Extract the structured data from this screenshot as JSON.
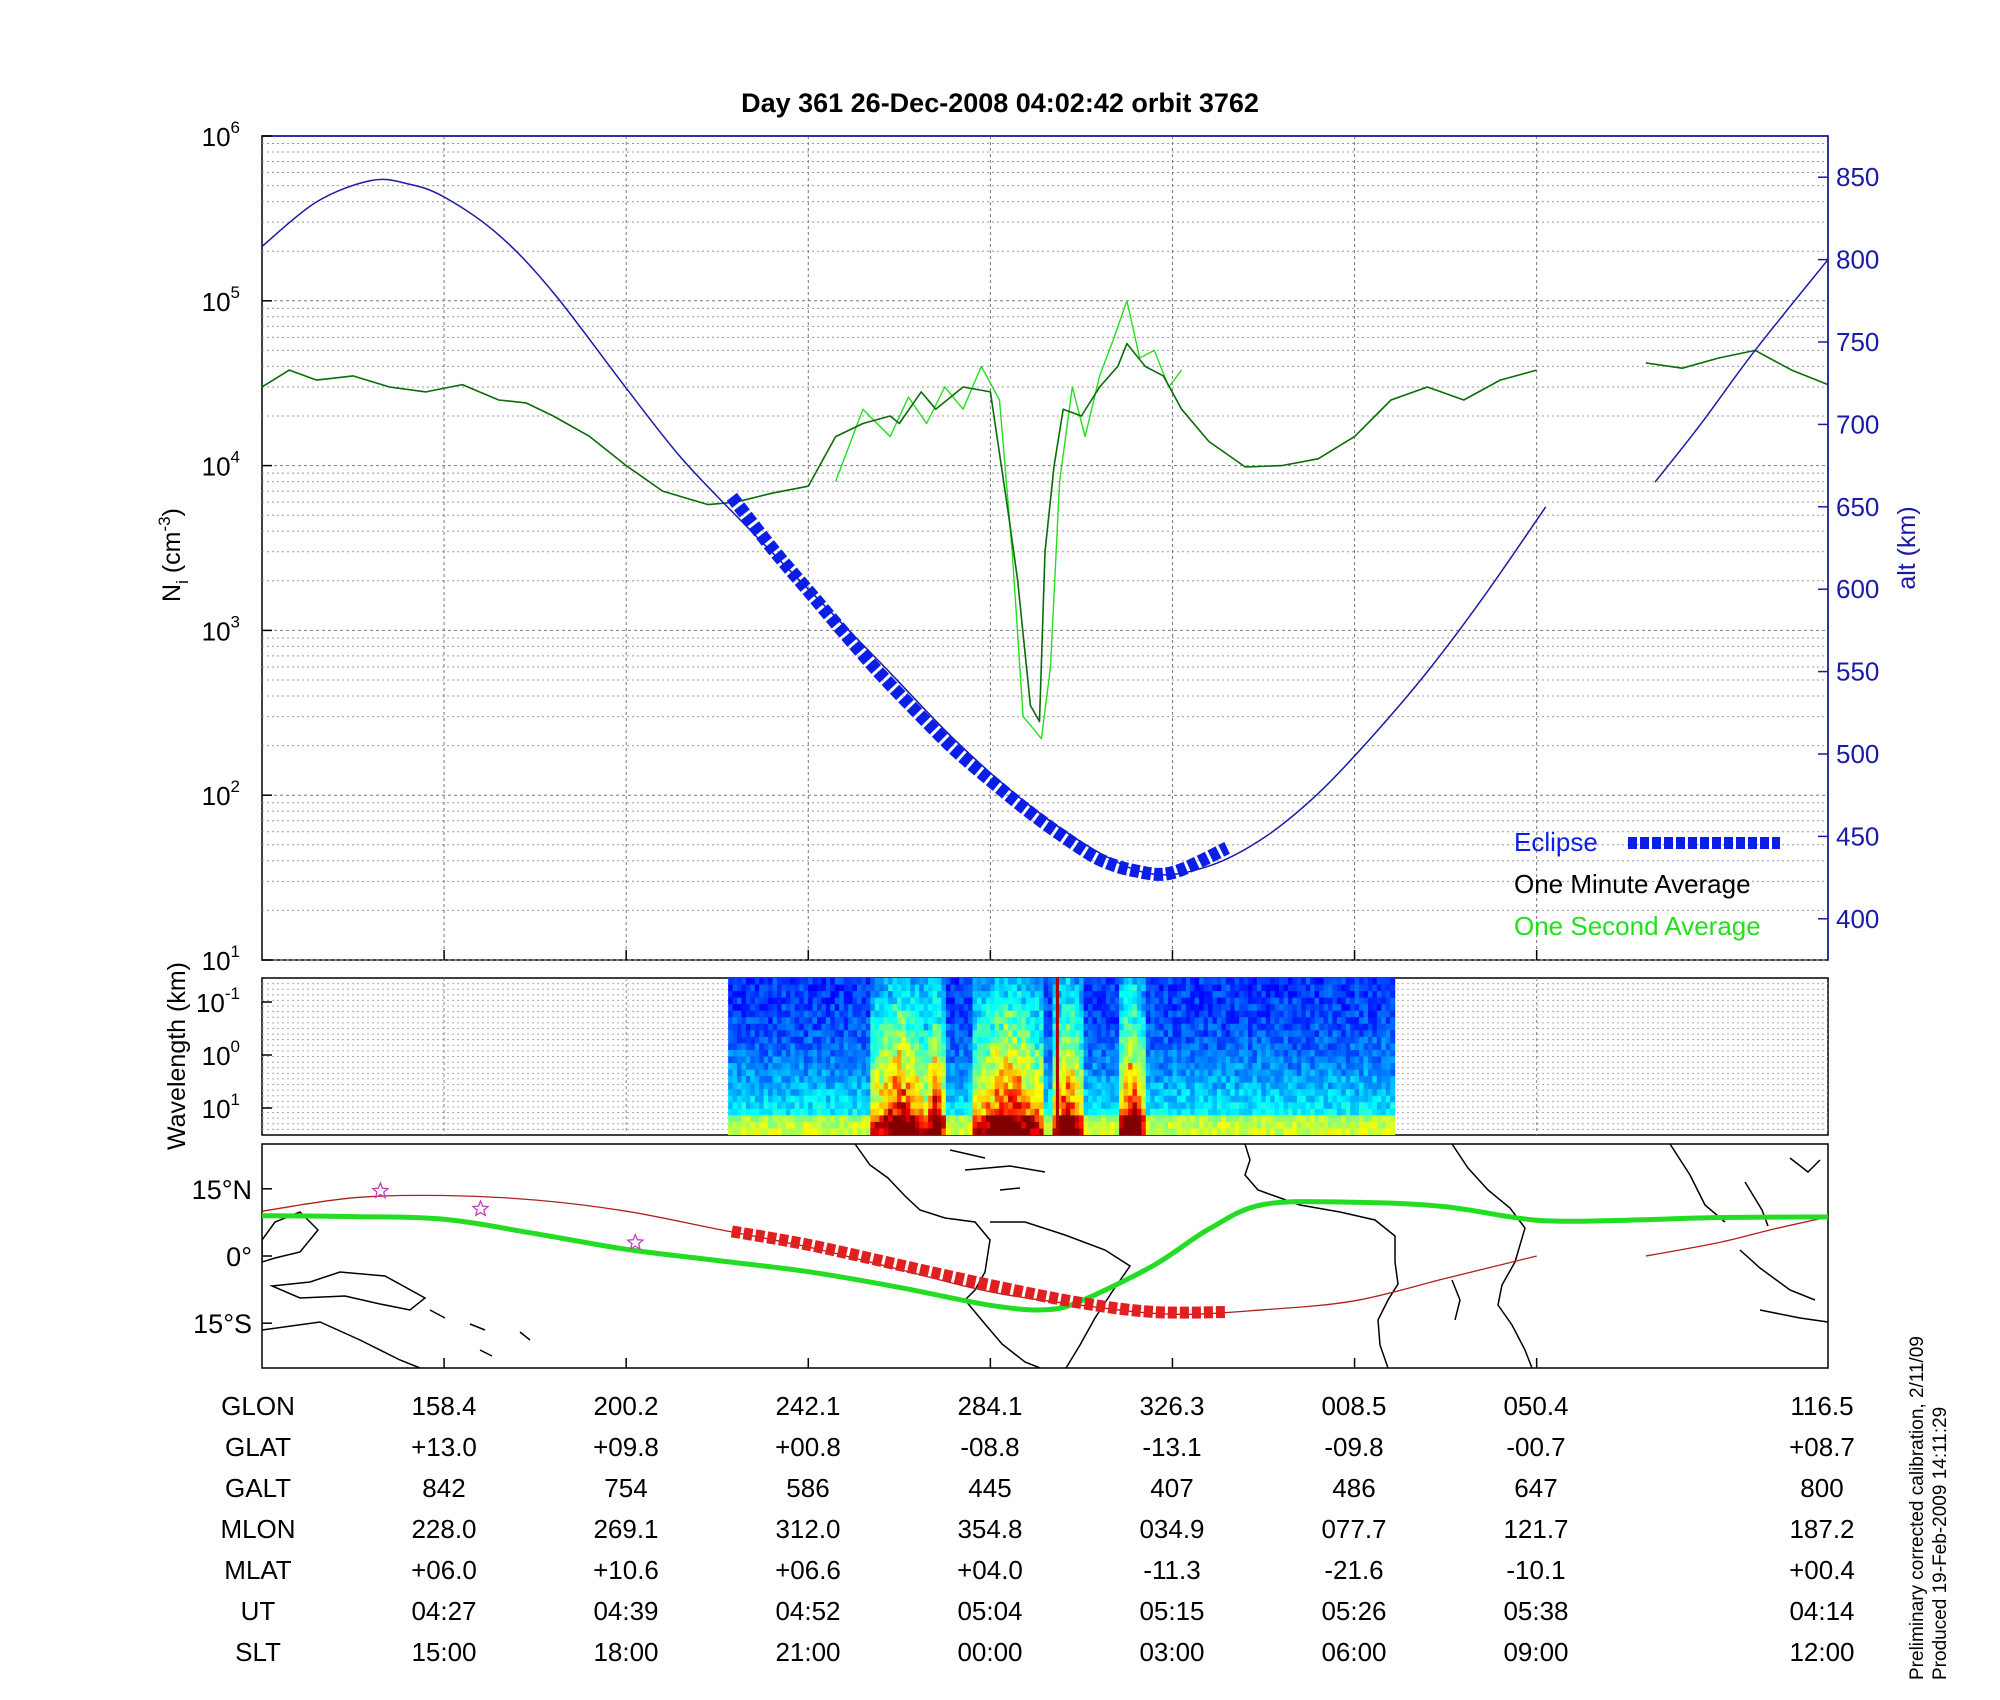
{
  "header": {
    "title": "Day 361  26-Dec-2008 04:02:42   orbit 3762"
  },
  "notes": {
    "calibration": "Preliminary corrected calibration, 2/11/09",
    "produced": "Produced 19-Feb-2009 14:11:29"
  },
  "colors": {
    "eclipse": "#0b1ee8",
    "one_minute": "#0b6b0b",
    "one_second": "#22e01c",
    "altitude": "#1a1aa8",
    "ground_track": "#22dd22",
    "eclipse_track": "#e02020",
    "orbit_track": "#b02020",
    "coast": "#000000",
    "star": "#c040c0"
  },
  "chart_data": [
    {
      "type": "line",
      "title": "Day 361  26-Dec-2008 04:02:42   orbit 3762",
      "ylabel": "N_i (cm^-3)",
      "ylabel_text": "N",
      "ylabel_sub": "i",
      "ylabel_par": "(cm",
      "ylabel_sup": "-3",
      "ylabel_close": ")",
      "y2label": "alt (km)",
      "yscale": "log",
      "ylim": [
        10,
        1000000
      ],
      "y_ticks": [
        {
          "base": "10",
          "exp": "1",
          "value": 10
        },
        {
          "base": "10",
          "exp": "2",
          "value": 100
        },
        {
          "base": "10",
          "exp": "3",
          "value": 1000
        },
        {
          "base": "10",
          "exp": "4",
          "value": 10000
        },
        {
          "base": "10",
          "exp": "5",
          "value": 100000
        },
        {
          "base": "10",
          "exp": "6",
          "value": 1000000
        }
      ],
      "y2lim": [
        375,
        875
      ],
      "y2_ticks": [
        "400",
        "450",
        "500",
        "550",
        "600",
        "650",
        "700",
        "750",
        "800",
        "850"
      ],
      "x_range": [
        0,
        8.6
      ],
      "grid": true,
      "legend_position": "bottom-right",
      "legend": [
        {
          "label": "Eclipse",
          "series": "eclipse"
        },
        {
          "label": "One Minute Average",
          "series": "one_minute"
        },
        {
          "label": "One Second Average",
          "series": "one_second"
        }
      ],
      "series": [
        {
          "key": "altitude",
          "name": "alt (km)",
          "axis": "right",
          "x": [
            0,
            0.3,
            0.6,
            0.8,
            1.0,
            1.3,
            1.6,
            2.0,
            2.3,
            2.6,
            3.0,
            3.4,
            3.8,
            4.2,
            4.6,
            4.9,
            5.2,
            5.5,
            5.8,
            6.1,
            6.4,
            6.7,
            7.05
          ],
          "values": [
            808,
            835,
            848,
            846,
            838,
            815,
            780,
            722,
            680,
            645,
            600,
            555,
            509,
            470,
            440,
            427,
            432,
            449,
            476,
            511,
            550,
            594,
            650
          ]
        },
        {
          "key": "altitude_tail",
          "name": "alt (km)",
          "axis": "right",
          "x": [
            7.65,
            7.9,
            8.2,
            8.6
          ],
          "values": [
            665,
            700,
            745,
            800
          ]
        },
        {
          "key": "eclipse",
          "name": "Eclipse",
          "axis": "right",
          "x": [
            2.58,
            2.8,
            3.0,
            3.2,
            3.4,
            3.6,
            3.8,
            4.0,
            4.2,
            4.4,
            4.6,
            4.8,
            5.0,
            5.3
          ],
          "values": [
            656,
            625,
            599,
            573,
            548,
            525,
            503,
            484,
            466,
            450,
            436,
            429,
            428,
            443
          ]
        },
        {
          "key": "one_minute",
          "name": "One Minute Average",
          "axis": "left",
          "x": [
            0,
            0.15,
            0.3,
            0.5,
            0.7,
            0.9,
            1.1,
            1.3,
            1.45,
            1.6,
            1.8,
            2.0,
            2.2,
            2.45,
            2.6,
            2.8,
            3.0,
            3.15,
            3.3,
            3.45,
            3.5,
            3.62,
            3.7,
            3.85,
            4.0,
            4.1,
            4.15,
            4.22,
            4.27,
            4.3,
            4.35,
            4.4,
            4.5,
            4.6,
            4.7,
            4.75,
            4.85,
            4.95,
            5.05,
            5.2,
            5.4,
            5.6,
            5.8,
            6.0,
            6.2,
            6.4,
            6.6,
            6.8,
            7.0
          ],
          "values": [
            30000,
            38000,
            33000,
            35000,
            30000,
            28000,
            31000,
            25000,
            24000,
            20000,
            15000,
            10000,
            7000,
            5800,
            6000,
            6800,
            7500,
            15000,
            18000,
            20000,
            18000,
            28000,
            22000,
            30000,
            28000,
            5000,
            2000,
            350,
            280,
            3000,
            10000,
            22000,
            20000,
            30000,
            40000,
            55000,
            40000,
            35000,
            22000,
            14000,
            9800,
            10000,
            11000,
            15000,
            25000,
            30000,
            25000,
            33000,
            38000
          ]
        },
        {
          "key": "one_minute_tail",
          "name": "One Minute Average",
          "axis": "left",
          "x": [
            7.6,
            7.8,
            8.0,
            8.2,
            8.4,
            8.6
          ],
          "values": [
            42000,
            39000,
            45000,
            50000,
            38000,
            31000
          ]
        },
        {
          "key": "one_second",
          "name": "One Second Average",
          "axis": "left",
          "x": [
            3.15,
            3.3,
            3.45,
            3.55,
            3.65,
            3.75,
            3.85,
            3.95,
            4.05,
            4.12,
            4.18,
            4.24,
            4.28,
            4.33,
            4.38,
            4.45,
            4.52,
            4.6,
            4.68,
            4.75,
            4.82,
            4.9,
            4.98,
            5.05
          ],
          "values": [
            8000,
            22000,
            15000,
            26000,
            18000,
            30000,
            22000,
            40000,
            25000,
            3000,
            300,
            250,
            220,
            600,
            8000,
            30000,
            15000,
            35000,
            60000,
            100000,
            45000,
            50000,
            30000,
            38000
          ]
        }
      ]
    },
    {
      "type": "heatmap",
      "ylabel": "Wavelength (km)",
      "ylabel_note": "log scale, inverted",
      "y_ticks": [
        {
          "base": "10",
          "exp": "-1"
        },
        {
          "base": "10",
          "exp": "0"
        },
        {
          "base": "10",
          "exp": "1"
        }
      ],
      "x_range": [
        0,
        8.6
      ],
      "data_extent_x": [
        2.56,
        6.22
      ],
      "colormap": "jet",
      "active_bands_x": [
        [
          3.35,
          3.65
        ],
        [
          3.65,
          3.75
        ],
        [
          3.9,
          4.3
        ],
        [
          4.35,
          4.5
        ],
        [
          4.7,
          4.85
        ]
      ],
      "grid": true
    },
    {
      "type": "line",
      "ylabel": "",
      "description_free": true,
      "y_ticks": [
        "15°N",
        "0°",
        "15°S"
      ],
      "ylim": [
        -25,
        25
      ],
      "x_range": [
        0,
        8.6
      ],
      "series": [
        {
          "key": "ground_track",
          "x": [
            0,
            0.5,
            1.0,
            1.5,
            2.0,
            2.5,
            3.0,
            3.5,
            4.0,
            4.3,
            4.5,
            4.9,
            5.2,
            5.5,
            6.0,
            6.5,
            7.0,
            7.5,
            8.0,
            8.6
          ],
          "values": [
            9,
            8.8,
            8.2,
            5,
            1.5,
            -1,
            -3.5,
            -7,
            -11,
            -12,
            -10,
            -2,
            6,
            11.5,
            12,
            11,
            8,
            8,
            8.6,
            8.7
          ]
        },
        {
          "key": "orbit_track",
          "x": [
            0,
            0.5,
            1.0,
            1.5,
            2.0,
            2.5,
            3.0,
            3.5,
            4.0,
            4.5,
            5.0,
            5.5,
            6.0,
            6.5,
            7.0
          ],
          "values": [
            10,
            13,
            13.5,
            12.5,
            10,
            6,
            2,
            -3,
            -8,
            -11,
            -13,
            -12,
            -10,
            -5,
            0
          ]
        },
        {
          "key": "orbit_track_tail",
          "x": [
            7.6,
            8.0,
            8.3,
            8.6
          ],
          "values": [
            0,
            3,
            6,
            8.7
          ]
        },
        {
          "key": "eclipse_track",
          "x": [
            2.58,
            3.0,
            3.5,
            4.0,
            4.5,
            4.9,
            5.3
          ],
          "values": [
            5.5,
            2.5,
            -2,
            -6.5,
            -10.5,
            -12.5,
            -12.5
          ]
        }
      ],
      "stars_x": [
        0.65,
        1.2,
        2.05
      ],
      "stars_y": [
        14.5,
        10.5,
        3.0
      ]
    }
  ],
  "table": {
    "row_labels": [
      "GLON",
      "GLAT",
      "GALT",
      "MLON",
      "MLAT",
      "UT",
      "SLT"
    ],
    "columns": [
      [
        "158.4",
        "+13.0",
        "842",
        "228.0",
        "+06.0",
        "04:27",
        "15:00"
      ],
      [
        "200.2",
        "+09.8",
        "754",
        "269.1",
        "+10.6",
        "04:39",
        "18:00"
      ],
      [
        "242.1",
        "+00.8",
        "586",
        "312.0",
        "+06.6",
        "04:52",
        "21:00"
      ],
      [
        "284.1",
        "-08.8",
        "445",
        "354.8",
        "+04.0",
        "05:04",
        "00:00"
      ],
      [
        "326.3",
        "-13.1",
        "407",
        "034.9",
        "-11.3",
        "05:15",
        "03:00"
      ],
      [
        "008.5",
        "-09.8",
        "486",
        "077.7",
        "-21.6",
        "05:26",
        "06:00"
      ],
      [
        "050.4",
        "-00.7",
        "647",
        "121.7",
        "-10.1",
        "05:38",
        "09:00"
      ],
      [
        "116.5",
        "+08.7",
        "800",
        "187.2",
        "+00.4",
        "04:14",
        "12:00"
      ]
    ]
  }
}
